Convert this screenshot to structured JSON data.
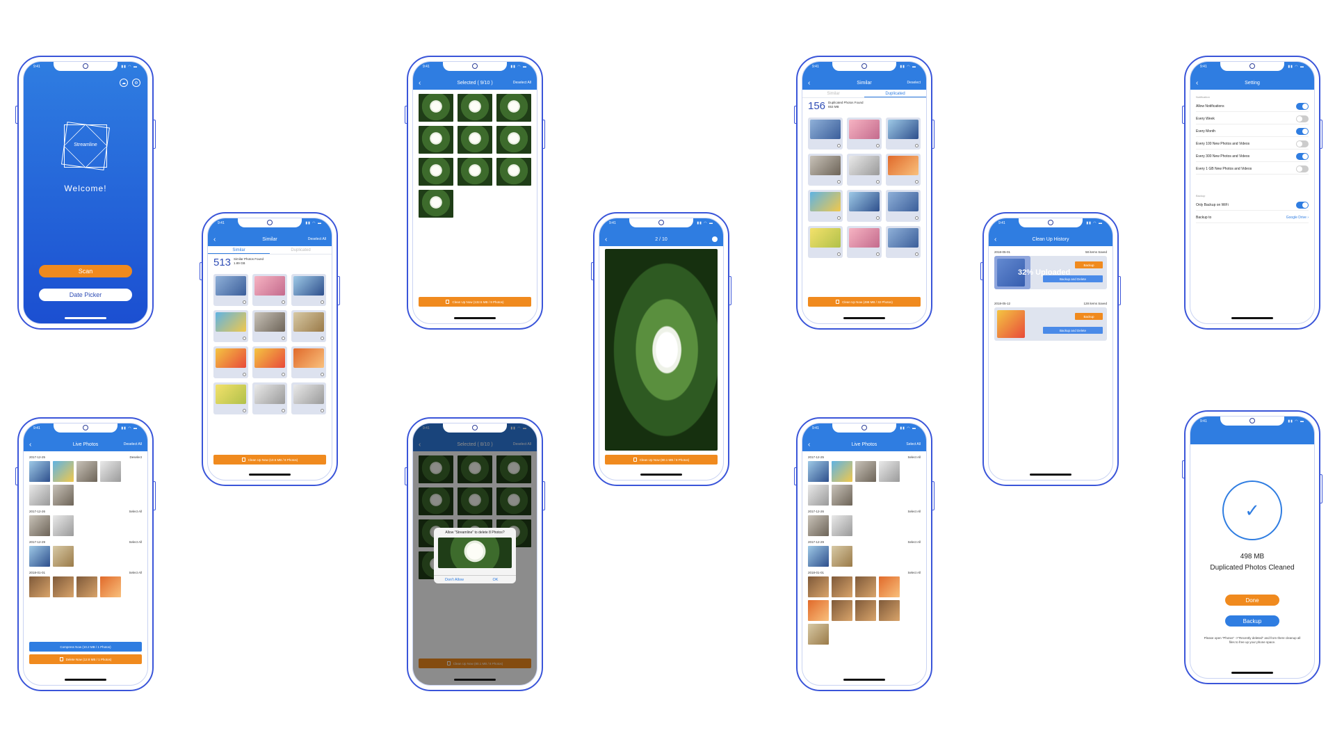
{
  "status": {
    "time": "9:41"
  },
  "welcome": {
    "app_name": "Streamline",
    "greeting": "Welcome!",
    "scan": "Scan",
    "date_picker": "Date Picker"
  },
  "similar": {
    "title": "Similar",
    "right": "Deselect All",
    "tab_similar": "Similar",
    "tab_duplicated": "Duplicated",
    "count": "513",
    "found_label": "Similar Photos Found",
    "size": "1.89 GB",
    "button": "Clean Up Now (10.5 MB / 8 Photos)"
  },
  "selected": {
    "title": "Selected ( 9/10 )",
    "right": "Deselect All",
    "button": "Clean Up Now (132.5 MB / 9 Photos)"
  },
  "selected_dialog": {
    "title": "Selected ( 8/10 )",
    "right": "Deselect All",
    "dialog_q": "Allow \"Streamline\" to delete 8 Photos?",
    "dont_allow": "Don't Allow",
    "ok": "OK",
    "button": "Clean Up Now (80.1 MB / 8 Photos)"
  },
  "preview": {
    "title": "2 / 10",
    "button": "Clean Up Now (80.1 MB / 8 Photos)"
  },
  "duplicated": {
    "title": "Similar",
    "right": "Deselect",
    "tab_similar": "Similar",
    "tab_duplicated": "Duplicated",
    "count": "156",
    "found_label": "Duplicated Photos Found",
    "size": "653 MB",
    "button": "Clean Up Now (498 MB / 32 Photos)"
  },
  "history": {
    "title": "Clean Up History",
    "rows": [
      {
        "date": "2018-05-01",
        "saved": "58 items Saved",
        "progress_label": "32% Uploaded",
        "progress": 0.32
      },
      {
        "date": "2018-05-12",
        "saved": "128 items Saved"
      }
    ],
    "backup": "Backup",
    "backup_delete": "Backup and Delete"
  },
  "settings": {
    "title": "Setting",
    "sec_notification": "Notification",
    "sec_backup": "Backup",
    "rows": [
      {
        "label": "Allow Notifications",
        "on": true
      },
      {
        "label": "Every Week",
        "on": false
      },
      {
        "label": "Every Month",
        "on": true
      },
      {
        "label": "Every 100 New Photos and Videos",
        "on": false
      },
      {
        "label": "Every 300 New Photos and Videos",
        "on": true
      },
      {
        "label": "Every 1 GB New Photos and Videos",
        "on": false
      }
    ],
    "wifi": "Only Backup on WiFi",
    "backup_to": "Backup to",
    "drive": "Google Drive"
  },
  "live1": {
    "title": "Live Photos",
    "right": "Deselect All",
    "days": [
      {
        "date": "2017-12-25",
        "action": "Deselect"
      },
      {
        "date": "2017-12-26",
        "action": "Select All"
      },
      {
        "date": "2017-12-29",
        "action": "Select All"
      },
      {
        "date": "2018-01-01",
        "action": "Select All"
      }
    ],
    "compress": "Compress Now (10.2 MB / 1 Photos)",
    "delete": "Delete Now (12.8 MB / 1 Photos)"
  },
  "live2": {
    "title": "Live Photos",
    "right": "Select All",
    "days": [
      {
        "date": "2017-12-25",
        "action": "Select All"
      },
      {
        "date": "2017-12-26",
        "action": "Select All"
      },
      {
        "date": "2017-12-29",
        "action": "Select All"
      },
      {
        "date": "2018-01-01",
        "action": "Select All"
      }
    ]
  },
  "done": {
    "size": "498 MB",
    "label": "Duplicated Photos Cleaned",
    "done": "Done",
    "backup": "Backup",
    "note": "Please open \"Photos\" ->\"Recently deleted\" and from there cleanup all files to free up your phone space."
  },
  "colors": {
    "primary": "#2f7de1",
    "accent": "#f08a1e",
    "frame": "#3a55d9"
  }
}
